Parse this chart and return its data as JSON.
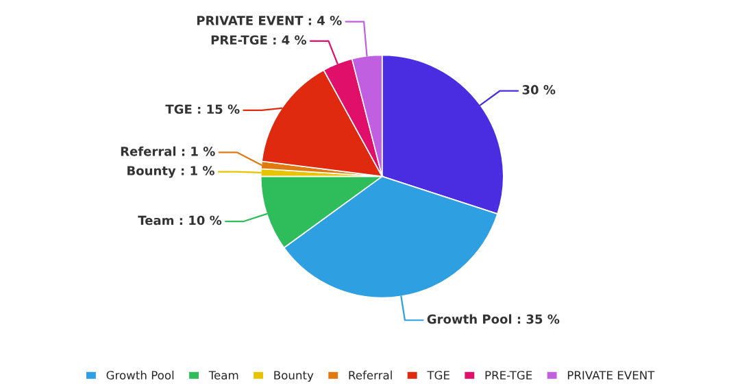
{
  "chart_data": {
    "type": "pie",
    "categories": [
      null,
      "Growth Pool",
      "Team",
      "Bounty",
      "Referral",
      "TGE",
      "PRE-TGE",
      "PRIVATE EVENT"
    ],
    "values": [
      30,
      35,
      10,
      1,
      1,
      15,
      4,
      4
    ],
    "value_labels": [
      "30 %",
      ": 35 %",
      ": 10 %",
      ": 1 %",
      ": 1 %",
      ": 15 %",
      ": 4 %",
      ": 4 %"
    ],
    "colors": [
      "#4a2de0",
      "#2e9fe0",
      "#2ebd5a",
      "#e8c400",
      "#e07a10",
      "#e02a10",
      "#e0106a",
      "#c060e0"
    ],
    "legend": "bottom"
  }
}
